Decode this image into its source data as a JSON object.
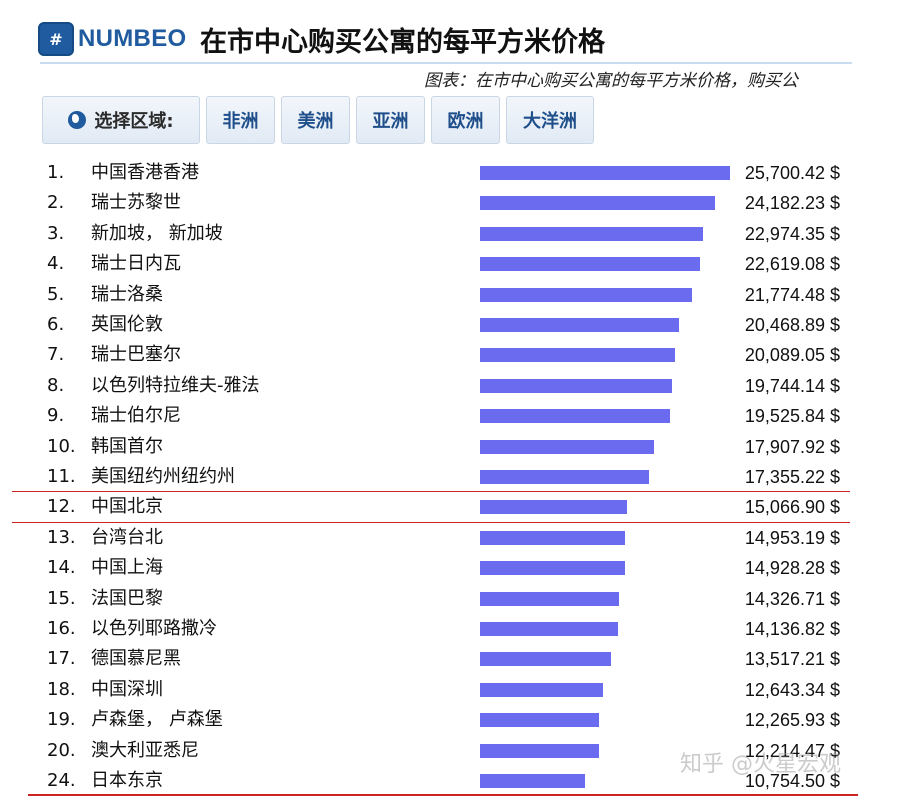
{
  "header": {
    "logo_mark": "#",
    "logo_text": "NUMBEO",
    "title": "在市中心购买公寓的每平方米价格"
  },
  "subtitle": "图表：在市中心购买公寓的每平方米价格，购买公",
  "regions": {
    "label": "选择区域:",
    "buttons": [
      "非洲",
      "美洲",
      "亚洲",
      "欧洲",
      "大洋洲"
    ]
  },
  "colors": {
    "bar": "#6b6bf0",
    "highlight_rule": "#cc2222",
    "brand": "#1f5b9e"
  },
  "chart_data": {
    "type": "bar",
    "orientation": "horizontal",
    "max_value": 25700.42,
    "rows": [
      {
        "rank": "1.",
        "city": "中国香港香港",
        "value": 25700.42,
        "label": "25,700.42 $"
      },
      {
        "rank": "2.",
        "city": "瑞士苏黎世",
        "value": 24182.23,
        "label": "24,182.23 $"
      },
      {
        "rank": "3.",
        "city": "新加坡， 新加坡",
        "value": 22974.35,
        "label": "22,974.35 $"
      },
      {
        "rank": "4.",
        "city": "瑞士日内瓦",
        "value": 22619.08,
        "label": "22,619.08 $"
      },
      {
        "rank": "5.",
        "city": "瑞士洛桑",
        "value": 21774.48,
        "label": "21,774.48 $"
      },
      {
        "rank": "6.",
        "city": "英国伦敦",
        "value": 20468.89,
        "label": "20,468.89 $"
      },
      {
        "rank": "7.",
        "city": "瑞士巴塞尔",
        "value": 20089.05,
        "label": "20,089.05 $"
      },
      {
        "rank": "8.",
        "city": "以色列特拉维夫-雅法",
        "value": 19744.14,
        "label": "19,744.14 $"
      },
      {
        "rank": "9.",
        "city": "瑞士伯尔尼",
        "value": 19525.84,
        "label": "19,525.84 $"
      },
      {
        "rank": "10.",
        "city": "韩国首尔",
        "value": 17907.92,
        "label": "17,907.92 $"
      },
      {
        "rank": "11.",
        "city": "美国纽约州纽约州",
        "value": 17355.22,
        "label": "17,355.22 $"
      },
      {
        "rank": "12.",
        "city": "中国北京",
        "value": 15066.9,
        "label": "15,066.90 $",
        "highlight": true
      },
      {
        "rank": "13.",
        "city": "台湾台北",
        "value": 14953.19,
        "label": "14,953.19 $"
      },
      {
        "rank": "14.",
        "city": "中国上海",
        "value": 14928.28,
        "label": "14,928.28 $"
      },
      {
        "rank": "15.",
        "city": "法国巴黎",
        "value": 14326.71,
        "label": "14,326.71 $"
      },
      {
        "rank": "16.",
        "city": "以色列耶路撒冷",
        "value": 14136.82,
        "label": "14,136.82 $"
      },
      {
        "rank": "17.",
        "city": "德国慕尼黑",
        "value": 13517.21,
        "label": "13,517.21 $"
      },
      {
        "rank": "18.",
        "city": "中国深圳",
        "value": 12643.34,
        "label": "12,643.34 $"
      },
      {
        "rank": "19.",
        "city": "卢森堡， 卢森堡",
        "value": 12265.93,
        "label": "12,265.93 $"
      },
      {
        "rank": "20.",
        "city": "澳大利亚悉尼",
        "value": 12214.47,
        "label": "12,214.47 $"
      },
      {
        "rank": "24.",
        "city": "日本东京",
        "value": 10754.5,
        "label": "10,754.50 $"
      }
    ]
  },
  "watermark": "知乎 @火星宏观"
}
